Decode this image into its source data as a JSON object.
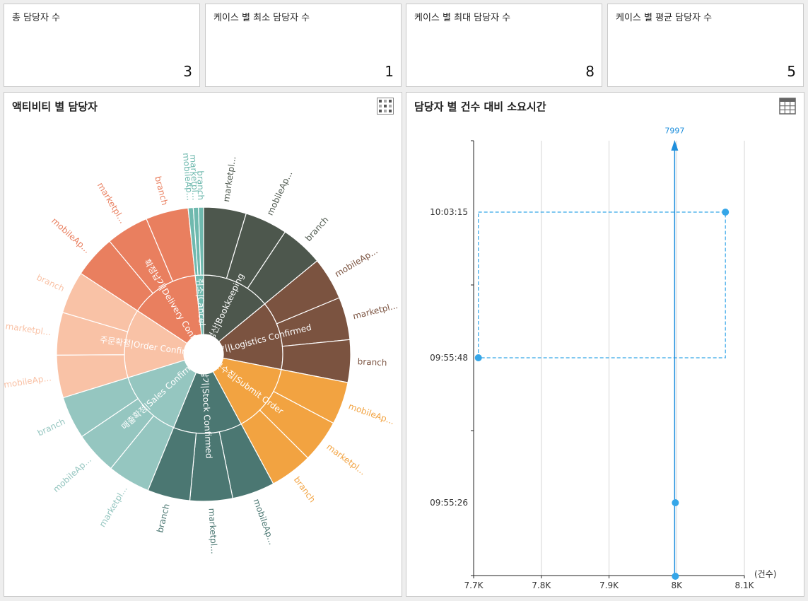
{
  "kpis": [
    {
      "label": "총 담당자 수",
      "value": "3"
    },
    {
      "label": "케이스 별 최소 담당자 수",
      "value": "1"
    },
    {
      "label": "케이스 별 최대 담당자 수",
      "value": "8"
    },
    {
      "label": "케이스 별 평균 담당자 수",
      "value": "5"
    }
  ],
  "sunburst_panel": {
    "title": "액티비티 별 담당자",
    "icon": "grid-pattern-icon"
  },
  "scatter_panel": {
    "title": "담당자 별 건수 대비 소요시간",
    "icon": "table-icon"
  },
  "chart_data": [
    {
      "type": "sunburst",
      "title": "액티비티 별 담당자",
      "groups": [
        {
          "name": "정산|Bookkeeping",
          "color": "#4d574d",
          "children": [
            "marketpl...",
            "mobileAp...",
            "branch"
          ],
          "weights": [
            1,
            1,
            1
          ]
        },
        {
          "name": "물류납기|Logistics Confirmed",
          "color": "#7b5340",
          "children": [
            "mobileAp...",
            "marketpl...",
            "branch"
          ],
          "weights": [
            1,
            1,
            1
          ]
        },
        {
          "name": "주문수집|Submit Order",
          "color": "#f2a341",
          "children": [
            "mobileAp...",
            "marketpl...",
            "branch"
          ],
          "weights": [
            1,
            1,
            1
          ]
        },
        {
          "name": "생산납기|Stock Confirmed",
          "color": "#4b7772",
          "children": [
            "mobileAp...",
            "marketpl...",
            "branch"
          ],
          "weights": [
            1,
            1,
            1
          ]
        },
        {
          "name": "매출확정|Sales Confirmation",
          "color": "#95c6c0",
          "children": [
            "marketpl...",
            "mobileAp...",
            "branch"
          ],
          "weights": [
            1,
            1,
            1
          ]
        },
        {
          "name": "주문확정|Order Confirmed",
          "color": "#f9c2a6",
          "children": [
            "mobileAp...",
            "marketpl...",
            "branch"
          ],
          "weights": [
            1,
            1,
            1
          ]
        },
        {
          "name": "확정납기|Delivery Confirmed",
          "color": "#e97f5f",
          "children": [
            "mobileAp...",
            "marketpl...",
            "branch"
          ],
          "weights": [
            1,
            1,
            1
          ]
        },
        {
          "name": "취소|Cancel",
          "color": "#6fb9ae",
          "children": [
            "mobileAp...",
            "marketpl...",
            "branch"
          ],
          "weights": [
            0.12,
            0.12,
            0.12
          ]
        }
      ]
    },
    {
      "type": "scatter",
      "title": "담당자 별 건수 대비 소요시간",
      "x_unit": "(건수)",
      "xlim": [
        7700,
        8100
      ],
      "x_ticks": [
        7700,
        7800,
        7900,
        8000,
        8100
      ],
      "x_tick_labels": [
        "7.7K",
        "7.8K",
        "7.9K",
        "8K",
        "8.1K"
      ],
      "y_tick_labels": [
        "10:03:15",
        "09:55:48",
        "09:55:26"
      ],
      "marker_x": 7997,
      "marker_label": "7997",
      "grid": "vertical",
      "series": [
        {
          "values": [
            [
              8072,
              "10:03:15"
            ],
            [
              7707,
              "09:55:48"
            ],
            [
              7998,
              "09:55:26"
            ],
            [
              7998,
              "09:55:04"
            ]
          ]
        }
      ]
    }
  ]
}
